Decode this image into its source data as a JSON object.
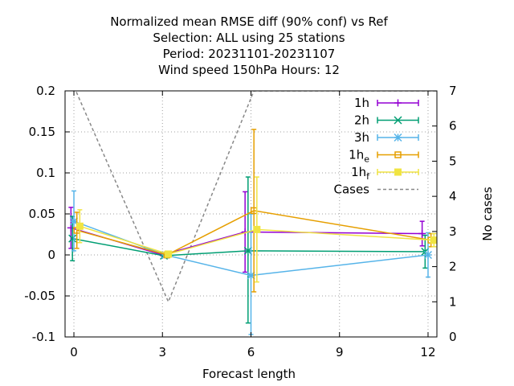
{
  "chart_data": {
    "type": "line",
    "title_lines": [
      "Normalized mean RMSE diff (90% conf) vs Ref",
      "Selection: ALL using    25 stations",
      "Period: 20231101-20231107",
      "Wind speed 150hPa   Hours:  12"
    ],
    "xlabel": "Forecast length",
    "ylabel_right": "No cases",
    "xlim": [
      -0.3,
      12.3
    ],
    "ylim": [
      -0.1,
      0.2
    ],
    "y2lim": [
      0,
      7
    ],
    "xticks": [
      0,
      3,
      6,
      9,
      12
    ],
    "yticks": [
      -0.1,
      -0.05,
      0,
      0.05,
      0.1,
      0.15,
      0.2
    ],
    "ytick_labels": [
      "-0.1",
      "-0.05",
      "0",
      "0.05",
      "0.1",
      "0.15",
      "0.2"
    ],
    "y2ticks": [
      0,
      1,
      2,
      3,
      4,
      5,
      6,
      7
    ],
    "grid": true,
    "legend_position": "top-right",
    "series": [
      {
        "name": "1h",
        "legend_main": "1h",
        "legend_sub": "",
        "color": "#9400d3",
        "marker": "plus",
        "points": [
          {
            "x": -0.1,
            "y": 0.033,
            "lo": 0.008,
            "hi": 0.058
          },
          {
            "x": 3.0,
            "y": 0.0,
            "lo": -0.001,
            "hi": 0.001
          },
          {
            "x": 5.8,
            "y": 0.028,
            "lo": -0.021,
            "hi": 0.077
          },
          {
            "x": 11.8,
            "y": 0.026,
            "lo": 0.011,
            "hi": 0.041
          }
        ]
      },
      {
        "name": "2h",
        "legend_main": "2h",
        "legend_sub": "",
        "color": "#009e73",
        "marker": "x",
        "points": [
          {
            "x": -0.05,
            "y": 0.02,
            "lo": -0.007,
            "hi": 0.047
          },
          {
            "x": 3.05,
            "y": -0.001,
            "lo": -0.002,
            "hi": 0.0
          },
          {
            "x": 5.9,
            "y": 0.005,
            "lo": -0.083,
            "hi": 0.095
          },
          {
            "x": 11.9,
            "y": 0.004,
            "lo": -0.016,
            "hi": 0.024
          }
        ]
      },
      {
        "name": "3h",
        "legend_main": "3h",
        "legend_sub": "",
        "color": "#56b4e9",
        "marker": "star",
        "points": [
          {
            "x": 0.0,
            "y": 0.041,
            "lo": 0.005,
            "hi": 0.078
          },
          {
            "x": 3.1,
            "y": 0.0,
            "lo": -0.001,
            "hi": 0.001
          },
          {
            "x": 6.0,
            "y": -0.025,
            "lo": -0.097,
            "hi": 0.05
          },
          {
            "x": 12.0,
            "y": 0.0,
            "lo": -0.027,
            "hi": 0.027
          }
        ]
      },
      {
        "name": "1he",
        "legend_main": "1h",
        "legend_sub": "e",
        "color": "#e69f00",
        "marker": "square",
        "points": [
          {
            "x": 0.1,
            "y": 0.03,
            "lo": 0.008,
            "hi": 0.052
          },
          {
            "x": 3.15,
            "y": 0.0,
            "lo": -0.002,
            "hi": 0.002
          },
          {
            "x": 6.1,
            "y": 0.054,
            "lo": -0.045,
            "hi": 0.153
          },
          {
            "x": 12.1,
            "y": 0.018,
            "lo": 0.01,
            "hi": 0.026
          }
        ]
      },
      {
        "name": "1hf",
        "legend_main": "1h",
        "legend_sub": "f",
        "color": "#f0e442",
        "marker": "filled-square",
        "points": [
          {
            "x": 0.2,
            "y": 0.035,
            "lo": 0.015,
            "hi": 0.055
          },
          {
            "x": 3.2,
            "y": 0.001,
            "lo": -0.001,
            "hi": 0.003
          },
          {
            "x": 6.2,
            "y": 0.031,
            "lo": -0.033,
            "hi": 0.095
          },
          {
            "x": 12.2,
            "y": 0.018,
            "lo": 0.01,
            "hi": 0.026
          }
        ]
      }
    ],
    "cases": {
      "name": "Cases",
      "color": "#888888",
      "axis": "y2",
      "points": [
        {
          "x": -0.3,
          "y": 7.7
        },
        {
          "x": 3.2,
          "y": 1.0
        },
        {
          "x": 6.1,
          "y": 7.0
        },
        {
          "x": 12.3,
          "y": 7.0
        }
      ]
    }
  }
}
